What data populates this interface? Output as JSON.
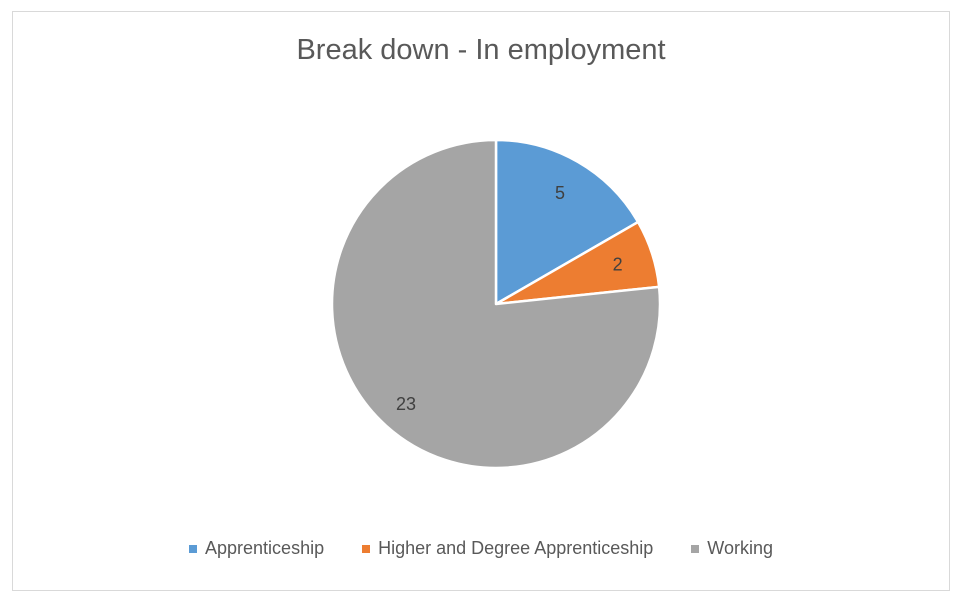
{
  "chart_data": {
    "type": "pie",
    "title": "Break down - In employment",
    "categories": [
      "Apprenticeship",
      "Higher and Degree Apprenticeship",
      "Working"
    ],
    "values": [
      5,
      2,
      23
    ],
    "colors": [
      "#5b9bd5",
      "#ed7d31",
      "#a5a5a5"
    ],
    "data_labels": [
      "5",
      "2",
      "23"
    ],
    "legend_position": "bottom",
    "start_angle": "12 o'clock",
    "direction": "clockwise"
  }
}
